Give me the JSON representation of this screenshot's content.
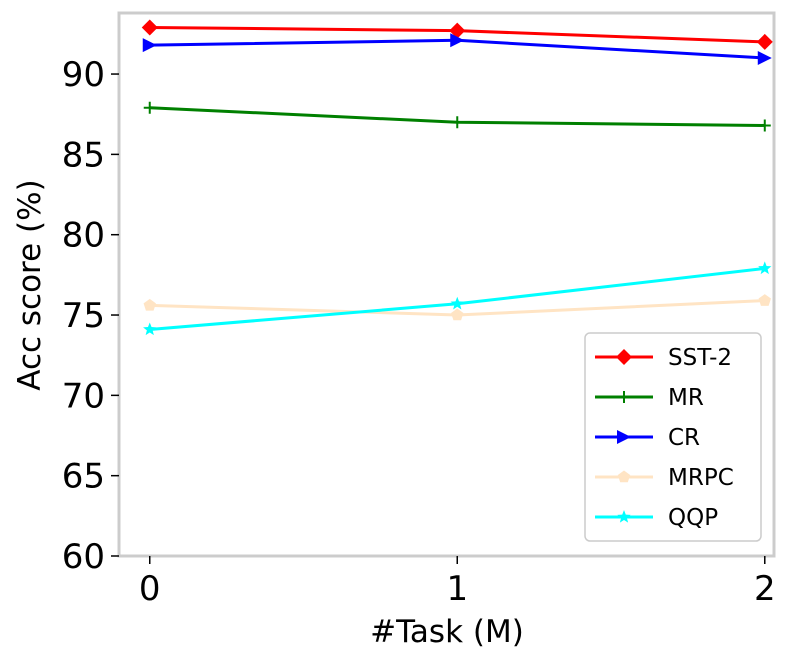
{
  "chart_data": {
    "type": "line",
    "xlabel": "#Task (M)",
    "ylabel": "Acc score (%)",
    "x": [
      0,
      1,
      2
    ],
    "x_ticks": [
      "0",
      "1",
      "2"
    ],
    "y_ticks": [
      "60",
      "65",
      "70",
      "75",
      "80",
      "85",
      "90"
    ],
    "xlim": [
      -0.1,
      2.03
    ],
    "ylim": [
      60,
      93.8
    ],
    "grid": false,
    "legend_position": "lower-right",
    "series": [
      {
        "name": "SST-2",
        "values": [
          92.9,
          92.7,
          92.0
        ],
        "color": "#ff0000",
        "marker": "diamond"
      },
      {
        "name": "MR",
        "values": [
          87.9,
          87.0,
          86.8
        ],
        "color": "#008000",
        "marker": "plus"
      },
      {
        "name": "CR",
        "values": [
          91.8,
          92.1,
          91.0
        ],
        "color": "#0000ff",
        "marker": "triangle-right"
      },
      {
        "name": "MRPC",
        "values": [
          75.6,
          75.0,
          75.9
        ],
        "color": "#ffe4c4",
        "marker": "pentagon"
      },
      {
        "name": "QQP",
        "values": [
          74.1,
          75.7,
          77.9
        ],
        "color": "#00ffff",
        "marker": "star"
      }
    ]
  }
}
